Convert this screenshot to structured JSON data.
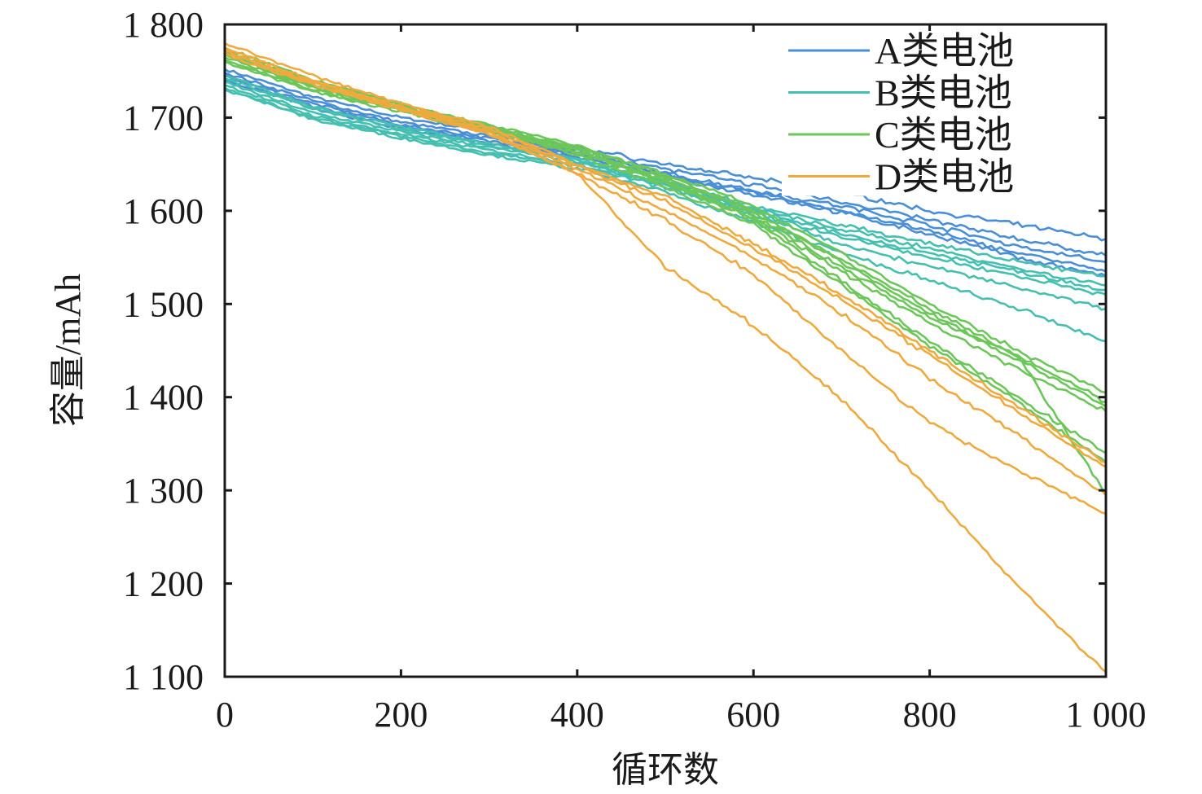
{
  "chart_data": {
    "type": "line",
    "title": "",
    "xlabel": "循环数",
    "ylabel": "容量/mAh",
    "xlim": [
      0,
      1000
    ],
    "ylim": [
      1100,
      1800
    ],
    "xticks": [
      0,
      200,
      400,
      600,
      800,
      1000
    ],
    "xtick_labels": [
      "0",
      "200",
      "400",
      "600",
      "800",
      "1 000"
    ],
    "yticks": [
      1100,
      1200,
      1300,
      1400,
      1500,
      1600,
      1700,
      1800
    ],
    "ytick_labels": [
      "1 100",
      "1 200",
      "1 300",
      "1 400",
      "1 500",
      "1 600",
      "1 700",
      "1 800"
    ],
    "legend_position": "top-right",
    "x": [
      0,
      100,
      200,
      300,
      400,
      500,
      600,
      700,
      800,
      900,
      1000
    ],
    "groups": [
      {
        "name": "A类电池",
        "color": "#4a8fd6",
        "curves": [
          [
            1752,
            1722,
            1700,
            1685,
            1668,
            1650,
            1635,
            1620,
            1600,
            1585,
            1570
          ],
          [
            1748,
            1718,
            1695,
            1680,
            1665,
            1645,
            1628,
            1610,
            1590,
            1570,
            1552
          ],
          [
            1745,
            1715,
            1692,
            1678,
            1662,
            1640,
            1622,
            1605,
            1585,
            1562,
            1545
          ],
          [
            1740,
            1712,
            1690,
            1675,
            1660,
            1638,
            1620,
            1600,
            1578,
            1555,
            1535
          ],
          [
            1745,
            1710,
            1688,
            1672,
            1658,
            1636,
            1618,
            1598,
            1575,
            1550,
            1530
          ]
        ]
      },
      {
        "name": "B类电池",
        "color": "#45bfb0",
        "curves": [
          [
            1738,
            1705,
            1685,
            1668,
            1652,
            1630,
            1605,
            1585,
            1565,
            1545,
            1530
          ],
          [
            1735,
            1702,
            1682,
            1665,
            1650,
            1628,
            1602,
            1580,
            1560,
            1538,
            1520
          ],
          [
            1742,
            1710,
            1688,
            1670,
            1655,
            1632,
            1600,
            1575,
            1555,
            1535,
            1515
          ],
          [
            1730,
            1700,
            1680,
            1662,
            1648,
            1625,
            1598,
            1572,
            1550,
            1530,
            1510
          ],
          [
            1745,
            1712,
            1690,
            1672,
            1655,
            1628,
            1595,
            1565,
            1540,
            1518,
            1495
          ],
          [
            1732,
            1698,
            1678,
            1660,
            1645,
            1620,
            1588,
            1555,
            1525,
            1495,
            1460
          ]
        ]
      },
      {
        "name": "C类电池",
        "color": "#6cc65a",
        "curves": [
          [
            1770,
            1735,
            1712,
            1690,
            1668,
            1640,
            1605,
            1555,
            1500,
            1450,
            1405
          ],
          [
            1765,
            1732,
            1710,
            1688,
            1665,
            1635,
            1598,
            1548,
            1495,
            1445,
            1395
          ],
          [
            1772,
            1738,
            1714,
            1692,
            1670,
            1638,
            1600,
            1545,
            1490,
            1440,
            1390
          ],
          [
            1760,
            1728,
            1706,
            1685,
            1662,
            1630,
            1592,
            1535,
            1480,
            1430,
            1385
          ],
          [
            1768,
            1733,
            1710,
            1688,
            1664,
            1632,
            1590,
            1525,
            1460,
            1400,
            1340
          ],
          [
            1762,
            1730,
            1708,
            1686,
            1660,
            1625,
            1585,
            1520,
            1455,
            1395,
            1330
          ],
          [
            1775,
            1740,
            1715,
            1690,
            1666,
            1632,
            1595,
            1540,
            1485,
            1445,
            1295
          ]
        ]
      },
      {
        "name": "D类电池",
        "color": "#eeaa3e",
        "curves": [
          [
            1780,
            1745,
            1715,
            1690,
            1650,
            1615,
            1565,
            1510,
            1450,
            1390,
            1330
          ],
          [
            1775,
            1740,
            1712,
            1688,
            1648,
            1610,
            1560,
            1505,
            1445,
            1385,
            1325
          ],
          [
            1770,
            1738,
            1710,
            1685,
            1645,
            1600,
            1550,
            1490,
            1420,
            1360,
            1295
          ],
          [
            1768,
            1735,
            1708,
            1682,
            1640,
            1590,
            1532,
            1450,
            1372,
            1322,
            1275
          ],
          [
            1772,
            1737,
            1709,
            1684,
            1640,
            1540,
            1477,
            1398,
            1300,
            1197,
            1105
          ]
        ]
      }
    ]
  }
}
